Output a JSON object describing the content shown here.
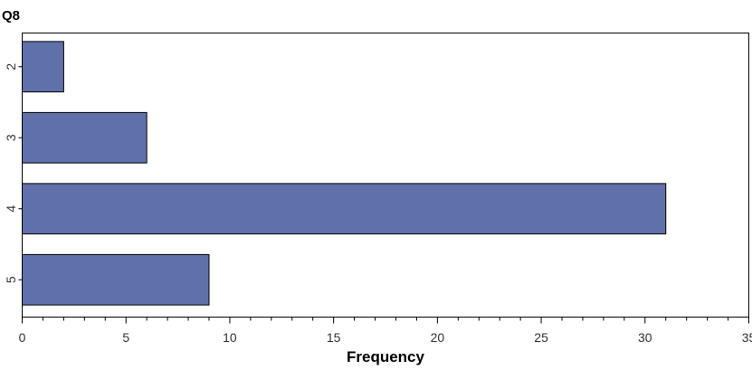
{
  "chart_data": {
    "type": "bar",
    "orientation": "horizontal",
    "title": "Q8",
    "xlabel": "Frequency",
    "ylabel": "",
    "categories": [
      "2",
      "3",
      "4",
      "5"
    ],
    "values": [
      2,
      6,
      31,
      9
    ],
    "xlim": [
      0,
      35
    ],
    "xticks": [
      0,
      5,
      10,
      15,
      20,
      25,
      30,
      35
    ],
    "grid": false,
    "bar_color": "#6070a8"
  }
}
